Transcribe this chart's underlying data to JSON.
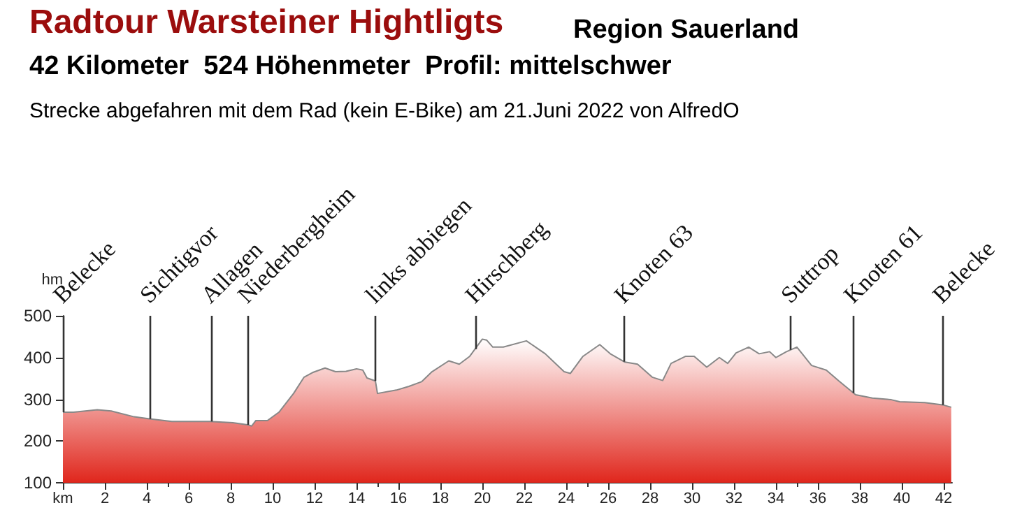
{
  "chart_data": {
    "type": "area",
    "title": "Radtour Warsteiner Hightligts",
    "subtitle": "Region Sauerland",
    "annotations": [
      "42 Kilometer  524 Höhenmeter  Profil: mittelschwer",
      "Strecke abgefahren mit dem Rad (kein E-Bike) am 21.Juni 2022 von AlfredO"
    ],
    "ylabel": "hm",
    "series": [
      {
        "color": "#e0261c",
        "x": [
          0,
          0.5,
          1.64,
          2.3,
          3.4,
          4.13,
          5.2,
          7.0,
          8.1,
          8.8,
          9.0,
          9.2,
          9.75,
          10.3,
          11.0,
          11.5,
          11.9,
          12.5,
          13.0,
          13.5,
          14.0,
          14.3,
          14.5,
          14.9,
          15.0,
          15.9,
          16.5,
          17.1,
          17.6,
          18.4,
          18.9,
          19.4,
          20.0,
          20.2,
          20.5,
          21.0,
          22.1,
          23.0,
          23.9,
          24.2,
          24.8,
          25.6,
          26.1,
          26.8,
          27.4,
          28.1,
          28.6,
          29.0,
          29.7,
          30.1,
          30.7,
          31.3,
          31.7,
          32.1,
          32.7,
          33.2,
          33.7,
          34.0,
          34.5,
          35.0,
          35.7,
          36.4,
          37.0,
          37.8,
          38.6,
          39.5,
          39.9,
          41.1,
          42.0,
          42.36
        ],
        "values": [
          269,
          269,
          275,
          272,
          258,
          253,
          247,
          247,
          244,
          239,
          236,
          249,
          249,
          269,
          314,
          353,
          364,
          375,
          366,
          367,
          373,
          370,
          351,
          344,
          314,
          322,
          331,
          342,
          366,
          392,
          384,
          403,
          444,
          442,
          425,
          425,
          440,
          409,
          366,
          362,
          403,
          431,
          409,
          389,
          384,
          353,
          345,
          386,
          403,
          403,
          377,
          400,
          386,
          411,
          425,
          409,
          414,
          400,
          414,
          425,
          381,
          370,
          344,
          311,
          303,
          299,
          294,
          292,
          286,
          281
        ]
      }
    ],
    "xlim": [
      0,
      42.4
    ],
    "ylim": [
      100,
      500
    ],
    "xticks": [
      {
        "value": 0,
        "label": "km"
      },
      2,
      4,
      6,
      8,
      10,
      12,
      14,
      16,
      18,
      20,
      22,
      24,
      26,
      28,
      30,
      32,
      34,
      36,
      38,
      40,
      42
    ],
    "yticks": [
      100,
      200,
      300,
      400,
      500
    ],
    "grid": false,
    "ref_lines": [
      {
        "axis": "x",
        "value": 0,
        "label": "Belecke"
      },
      {
        "axis": "x",
        "value": 4.13,
        "label": "Sichtigvor"
      },
      {
        "axis": "x",
        "value": 7.05,
        "label": "Allagen"
      },
      {
        "axis": "x",
        "value": 8.8,
        "label": "Niederbergheim"
      },
      {
        "axis": "x",
        "value": 14.9,
        "label": "links abbiegen"
      },
      {
        "axis": "x",
        "value": 19.65,
        "label": "Hirschberg"
      },
      {
        "axis": "x",
        "value": 26.76,
        "label": "Knoten 63"
      },
      {
        "axis": "x",
        "value": 34.7,
        "label": "Suttrop"
      },
      {
        "axis": "x",
        "value": 37.7,
        "label": "Knoten 61"
      },
      {
        "axis": "x",
        "value": 41.93,
        "label": "Belecke"
      }
    ]
  }
}
